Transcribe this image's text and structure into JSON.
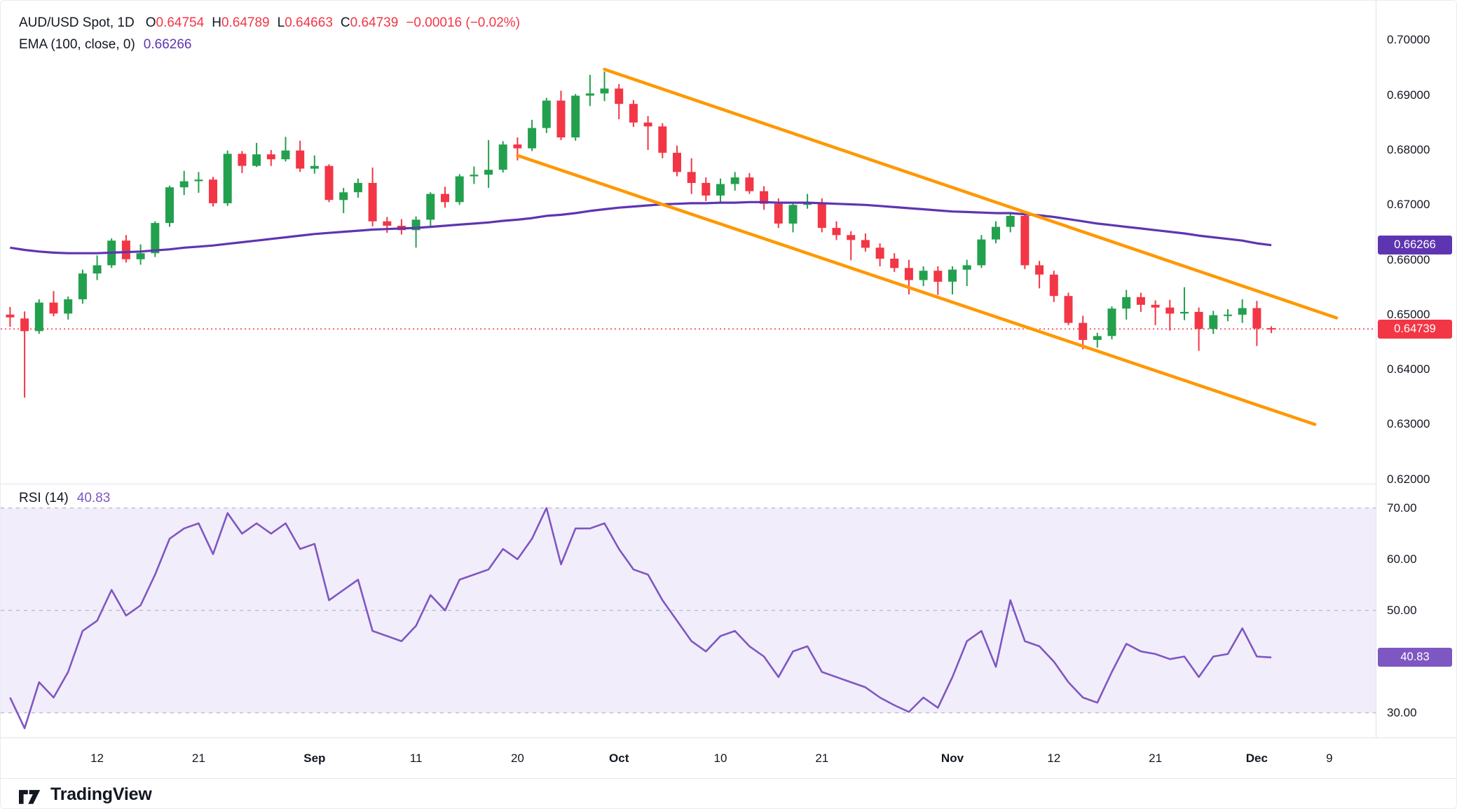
{
  "header": {
    "title": "AUD/USD Spot, 1D",
    "ohlc": [
      {
        "prefix": "O",
        "value": "0.64754"
      },
      {
        "prefix": "H",
        "value": "0.64789"
      },
      {
        "prefix": "L",
        "value": "0.64663"
      },
      {
        "prefix": "C",
        "value": "0.64739"
      }
    ],
    "change": "−0.00016 (−0.02%)",
    "ema_label": "EMA (100, close, 0)",
    "ema_value": "0.66266"
  },
  "rsi_header": {
    "label": "RSI (14)",
    "value": "40.83"
  },
  "footer": {
    "brand": "TradingView"
  },
  "colors": {
    "up": "#23a04e",
    "down": "#f23645",
    "ema": "#5e35b1",
    "rsi": "#7e57c2",
    "rsi_band": "#f2edfa",
    "level_line": "#a5a8b4",
    "trendline": "#ff9800",
    "text": "#131722",
    "axis_border": "#e0e3eb"
  },
  "chart_data": [
    {
      "type": "candlestick",
      "symbol": "AUD/USD Spot",
      "timeframe": "1D",
      "legend_position": "top-left",
      "grid": false,
      "last_price": 0.64739,
      "ylim": [
        0.6192,
        0.7072
      ],
      "xlim": [
        -0.65,
        94.2
      ],
      "x": [
        "08-02",
        "08-05",
        "08-06",
        "08-07",
        "08-08",
        "08-09",
        "08-12",
        "08-13",
        "08-14",
        "08-15",
        "08-16",
        "08-19",
        "08-20",
        "08-21",
        "08-22",
        "08-23",
        "08-26",
        "08-27",
        "08-28",
        "08-29",
        "08-30",
        "09-02",
        "09-03",
        "09-04",
        "09-05",
        "09-06",
        "09-09",
        "09-10",
        "09-11",
        "09-12",
        "09-13",
        "09-16",
        "09-17",
        "09-18",
        "09-19",
        "09-20",
        "09-23",
        "09-24",
        "09-25",
        "09-26",
        "09-27",
        "09-30",
        "10-01",
        "10-02",
        "10-03",
        "10-04",
        "10-07",
        "10-08",
        "10-09",
        "10-10",
        "10-11",
        "10-14",
        "10-15",
        "10-16",
        "10-17",
        "10-18",
        "10-21",
        "10-22",
        "10-23",
        "10-24",
        "10-25",
        "10-28",
        "10-29",
        "10-30",
        "10-31",
        "11-01",
        "11-04",
        "11-05",
        "11-06",
        "11-07",
        "11-08",
        "11-11",
        "11-12",
        "11-13",
        "11-14",
        "11-15",
        "11-18",
        "11-19",
        "11-20",
        "11-21",
        "11-22",
        "11-25",
        "11-26",
        "11-27",
        "11-28",
        "11-29",
        "12-02",
        "12-03"
      ],
      "ohlc": [
        [
          0.65,
          0.6514,
          0.6478,
          0.6495
        ],
        [
          0.6493,
          0.6506,
          0.6349,
          0.647
        ],
        [
          0.647,
          0.6528,
          0.6465,
          0.6522
        ],
        [
          0.6522,
          0.6543,
          0.6497,
          0.6502
        ],
        [
          0.6502,
          0.6533,
          0.6491,
          0.6528
        ],
        [
          0.6528,
          0.6582,
          0.652,
          0.6575
        ],
        [
          0.6575,
          0.6608,
          0.6563,
          0.659
        ],
        [
          0.659,
          0.6639,
          0.6585,
          0.6635
        ],
        [
          0.6635,
          0.6645,
          0.6595,
          0.6601
        ],
        [
          0.6601,
          0.6628,
          0.6591,
          0.6612
        ],
        [
          0.6612,
          0.667,
          0.6605,
          0.6667
        ],
        [
          0.6667,
          0.6735,
          0.666,
          0.6732
        ],
        [
          0.6732,
          0.6762,
          0.6718,
          0.6743
        ],
        [
          0.6743,
          0.676,
          0.6722,
          0.6746
        ],
        [
          0.6746,
          0.6751,
          0.6697,
          0.6703
        ],
        [
          0.6703,
          0.6799,
          0.6698,
          0.6793
        ],
        [
          0.6793,
          0.6798,
          0.6758,
          0.6771
        ],
        [
          0.6771,
          0.6813,
          0.6769,
          0.6792
        ],
        [
          0.6792,
          0.68,
          0.6771,
          0.6783
        ],
        [
          0.6783,
          0.6824,
          0.6779,
          0.6799
        ],
        [
          0.6799,
          0.6817,
          0.676,
          0.6766
        ],
        [
          0.6766,
          0.679,
          0.6757,
          0.6771
        ],
        [
          0.6771,
          0.6774,
          0.6705,
          0.6709
        ],
        [
          0.6709,
          0.6731,
          0.6685,
          0.6723
        ],
        [
          0.6723,
          0.6748,
          0.6713,
          0.674
        ],
        [
          0.674,
          0.6768,
          0.6661,
          0.667
        ],
        [
          0.667,
          0.6678,
          0.6649,
          0.6662
        ],
        [
          0.6662,
          0.6674,
          0.6646,
          0.6654
        ],
        [
          0.6654,
          0.6679,
          0.6622,
          0.6673
        ],
        [
          0.6673,
          0.6723,
          0.666,
          0.672
        ],
        [
          0.672,
          0.6733,
          0.6695,
          0.6705
        ],
        [
          0.6705,
          0.6756,
          0.67,
          0.6752
        ],
        [
          0.6752,
          0.677,
          0.6738,
          0.6755
        ],
        [
          0.6755,
          0.6818,
          0.6731,
          0.6764
        ],
        [
          0.6764,
          0.6816,
          0.6759,
          0.681
        ],
        [
          0.681,
          0.6823,
          0.6781,
          0.6803
        ],
        [
          0.6803,
          0.6855,
          0.6798,
          0.684
        ],
        [
          0.684,
          0.6895,
          0.6831,
          0.689
        ],
        [
          0.689,
          0.6908,
          0.6818,
          0.6823
        ],
        [
          0.6823,
          0.6902,
          0.6817,
          0.6899
        ],
        [
          0.6899,
          0.6937,
          0.688,
          0.6903
        ],
        [
          0.6903,
          0.6943,
          0.6889,
          0.6912
        ],
        [
          0.6912,
          0.692,
          0.6856,
          0.6884
        ],
        [
          0.6884,
          0.6891,
          0.6842,
          0.685
        ],
        [
          0.685,
          0.6862,
          0.68,
          0.6843
        ],
        [
          0.6843,
          0.6849,
          0.6785,
          0.6795
        ],
        [
          0.6795,
          0.6808,
          0.6752,
          0.676
        ],
        [
          0.676,
          0.6785,
          0.672,
          0.674
        ],
        [
          0.674,
          0.675,
          0.6707,
          0.6717
        ],
        [
          0.6717,
          0.6748,
          0.6702,
          0.6738
        ],
        [
          0.6738,
          0.676,
          0.6726,
          0.675
        ],
        [
          0.675,
          0.6758,
          0.672,
          0.6725
        ],
        [
          0.6725,
          0.6734,
          0.6691,
          0.6702
        ],
        [
          0.6702,
          0.6712,
          0.6658,
          0.6666
        ],
        [
          0.6666,
          0.6706,
          0.665,
          0.67
        ],
        [
          0.67,
          0.672,
          0.6693,
          0.6704
        ],
        [
          0.6704,
          0.6712,
          0.665,
          0.6658
        ],
        [
          0.6658,
          0.667,
          0.6636,
          0.6645
        ],
        [
          0.6645,
          0.6652,
          0.6599,
          0.6636
        ],
        [
          0.6636,
          0.6648,
          0.6615,
          0.6622
        ],
        [
          0.6622,
          0.663,
          0.6588,
          0.6602
        ],
        [
          0.6602,
          0.6612,
          0.6578,
          0.6585
        ],
        [
          0.6585,
          0.66,
          0.6537,
          0.6563
        ],
        [
          0.6563,
          0.6588,
          0.6552,
          0.658
        ],
        [
          0.658,
          0.6588,
          0.6536,
          0.656
        ],
        [
          0.656,
          0.6588,
          0.6537,
          0.6582
        ],
        [
          0.6582,
          0.66,
          0.6552,
          0.659
        ],
        [
          0.659,
          0.6645,
          0.6585,
          0.6637
        ],
        [
          0.6637,
          0.667,
          0.663,
          0.666
        ],
        [
          0.666,
          0.6687,
          0.665,
          0.668
        ],
        [
          0.668,
          0.6684,
          0.6583,
          0.659
        ],
        [
          0.659,
          0.6598,
          0.6548,
          0.6573
        ],
        [
          0.6573,
          0.658,
          0.6523,
          0.6534
        ],
        [
          0.6534,
          0.654,
          0.6481,
          0.6485
        ],
        [
          0.6485,
          0.6498,
          0.6437,
          0.6454
        ],
        [
          0.6454,
          0.6467,
          0.644,
          0.6461
        ],
        [
          0.6461,
          0.6515,
          0.6455,
          0.6511
        ],
        [
          0.6511,
          0.6545,
          0.6491,
          0.6532
        ],
        [
          0.6532,
          0.654,
          0.6505,
          0.6518
        ],
        [
          0.6518,
          0.6526,
          0.6481,
          0.6513
        ],
        [
          0.6513,
          0.6527,
          0.6471,
          0.6502
        ],
        [
          0.6502,
          0.655,
          0.649,
          0.6505
        ],
        [
          0.6505,
          0.6513,
          0.6434,
          0.6474
        ],
        [
          0.6474,
          0.6507,
          0.6465,
          0.6499
        ],
        [
          0.6499,
          0.651,
          0.6488,
          0.65
        ],
        [
          0.65,
          0.6528,
          0.6485,
          0.6512
        ],
        [
          0.6512,
          0.6525,
          0.6443,
          0.6475
        ],
        [
          0.64754,
          0.64789,
          0.64663,
          0.64739
        ]
      ],
      "yticks": [
        {
          "label": "0.70000",
          "value": 0.7
        },
        {
          "label": "0.69000",
          "value": 0.69
        },
        {
          "label": "0.68000",
          "value": 0.68
        },
        {
          "label": "0.67000",
          "value": 0.67
        },
        {
          "label": "0.66000",
          "value": 0.66
        },
        {
          "label": "0.65000",
          "value": 0.65
        },
        {
          "label": "0.64000",
          "value": 0.64
        },
        {
          "label": "0.63000",
          "value": 0.63
        },
        {
          "label": "0.62000",
          "value": 0.62
        }
      ],
      "xticks": [
        {
          "label": "12",
          "i": 6
        },
        {
          "label": "21",
          "i": 13
        },
        {
          "label": "Sep",
          "i": 21,
          "bold": true
        },
        {
          "label": "11",
          "i": 28
        },
        {
          "label": "20",
          "i": 35
        },
        {
          "label": "Oct",
          "i": 42,
          "bold": true
        },
        {
          "label": "10",
          "i": 49
        },
        {
          "label": "21",
          "i": 56
        },
        {
          "label": "Nov",
          "i": 65,
          "bold": true
        },
        {
          "label": "12",
          "i": 72
        },
        {
          "label": "21",
          "i": 79
        },
        {
          "label": "Dec",
          "i": 86,
          "bold": true
        },
        {
          "label": "9",
          "i": 91
        }
      ],
      "badges": [
        {
          "label": "0.66266",
          "value": 0.66266,
          "color_key": "ema",
          "name": "ema-value-badge"
        },
        {
          "label": "0.64739",
          "value": 0.64739,
          "color_key": "down",
          "name": "last-price-badge"
        }
      ],
      "overlays": [
        {
          "name": "EMA (100, close, 0)",
          "type": "line",
          "color_key": "ema",
          "last_value": 0.66266,
          "values": [
            0.6622,
            0.6618,
            0.6615,
            0.6613,
            0.6612,
            0.6612,
            0.6612,
            0.6613,
            0.6614,
            0.6615,
            0.6617,
            0.6619,
            0.6622,
            0.6624,
            0.6626,
            0.6629,
            0.6632,
            0.6635,
            0.6638,
            0.6641,
            0.6644,
            0.6647,
            0.6649,
            0.6651,
            0.6653,
            0.6655,
            0.6656,
            0.6657,
            0.6658,
            0.666,
            0.6662,
            0.6664,
            0.6666,
            0.6668,
            0.6671,
            0.6673,
            0.6676,
            0.668,
            0.6682,
            0.6685,
            0.6689,
            0.6692,
            0.6695,
            0.6697,
            0.6699,
            0.6701,
            0.6702,
            0.6703,
            0.6703,
            0.6704,
            0.6704,
            0.6705,
            0.6705,
            0.6704,
            0.6704,
            0.6704,
            0.6703,
            0.6702,
            0.6701,
            0.67,
            0.6698,
            0.6696,
            0.6694,
            0.6692,
            0.669,
            0.6688,
            0.6687,
            0.6686,
            0.6685,
            0.6685,
            0.6683,
            0.6681,
            0.6678,
            0.6674,
            0.667,
            0.6666,
            0.6663,
            0.666,
            0.6657,
            0.6654,
            0.6651,
            0.6648,
            0.6644,
            0.6641,
            0.6638,
            0.6635,
            0.663,
            0.66266
          ]
        },
        {
          "name": "descending-channel-upper-trendline",
          "type": "trendline",
          "color_key": "trendline",
          "points": [
            [
              41,
              0.6947
            ],
            [
              91.5,
              0.6494
            ]
          ]
        },
        {
          "name": "descending-channel-lower-trendline",
          "type": "trendline",
          "color_key": "trendline",
          "points": [
            [
              35,
              0.679
            ],
            [
              90,
              0.63
            ]
          ]
        }
      ]
    },
    {
      "type": "line",
      "name": "RSI (14)",
      "last_value": 40.83,
      "ylim": [
        25.2,
        74.6
      ],
      "band": [
        30,
        70
      ],
      "levels": [
        30,
        50,
        70
      ],
      "values": [
        33,
        27,
        36,
        33,
        38,
        46,
        48,
        54,
        49,
        51,
        57,
        64,
        66,
        67,
        61,
        69,
        65,
        67,
        65,
        67,
        62,
        63,
        52,
        54,
        56,
        46,
        45,
        44,
        47,
        53,
        50,
        56,
        57,
        58,
        62,
        60,
        64,
        70,
        59,
        66,
        66,
        67,
        62,
        58,
        57,
        52,
        48,
        44,
        42,
        45,
        46,
        43,
        41,
        37,
        42,
        43,
        38,
        37,
        36,
        35,
        33,
        31.5,
        30.2,
        33,
        31,
        37,
        44,
        46,
        39,
        52,
        44,
        43,
        40,
        36,
        33,
        32,
        38,
        43.5,
        42,
        41.5,
        40.5,
        41,
        37,
        41,
        41.5,
        46.5,
        41,
        40.83
      ],
      "yticks": [
        {
          "label": "70.00",
          "value": 70
        },
        {
          "label": "60.00",
          "value": 60
        },
        {
          "label": "50.00",
          "value": 50
        },
        {
          "label": "30.00",
          "value": 30
        }
      ],
      "badge": {
        "label": "40.83",
        "value": 40.83,
        "color_key": "rsi",
        "name": "rsi-value-badge"
      }
    }
  ]
}
